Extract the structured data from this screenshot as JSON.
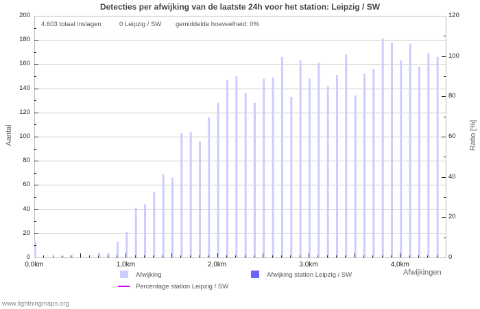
{
  "title": "Detecties per afwijking van de laatste 24h voor het station: Leipzig / SW",
  "info": {
    "total": "4.603 totaal inslagen",
    "station": "0 Leipzig / SW",
    "average": "gemiddelde hoeveelheid: 0%"
  },
  "axes": {
    "left_label": "Aantal",
    "right_label": "Ratio [%]",
    "x_label": "Afwijkingen"
  },
  "legend": {
    "items": [
      {
        "label": "Afwijking",
        "color": "#ccccff",
        "type": "box"
      },
      {
        "label": "Afwijking station Leipzig / SW",
        "color": "#6666ff",
        "type": "box"
      },
      {
        "label": "Percentage station Leipzig / SW",
        "color": "#cc00ee",
        "type": "line"
      }
    ]
  },
  "watermark": "www.lightningmaps.org",
  "colors": {
    "grid": "#cccccc",
    "axis": "#bbbbbb",
    "tick": "#222222",
    "bar": "#ccccff",
    "station_bar": "#6666ff",
    "percentage_line": "#cc00ee"
  },
  "chart_data": {
    "type": "bar",
    "title": "Detecties per afwijking van de laatste 24h voor het station: Leipzig / SW",
    "xlabel": "Afwijkingen",
    "ylabel": "Aantal",
    "y2label": "Ratio [%]",
    "x_unit": "m",
    "x": [
      0,
      100,
      200,
      300,
      400,
      500,
      600,
      700,
      800,
      900,
      1000,
      1100,
      1200,
      1300,
      1400,
      1500,
      1600,
      1700,
      1800,
      1900,
      2000,
      2100,
      2200,
      2300,
      2400,
      2500,
      2600,
      2700,
      2800,
      2900,
      3000,
      3100,
      3200,
      3300,
      3400,
      3500,
      3600,
      3700,
      3800,
      3900,
      4000,
      4100,
      4200,
      4300,
      4400
    ],
    "series": [
      {
        "name": "Afwijking",
        "axis": "left",
        "type": "bar",
        "values": [
          13,
          0,
          0,
          1,
          2,
          0,
          0,
          4,
          4,
          13,
          21,
          41,
          44,
          54,
          69,
          66,
          103,
          104,
          96,
          116,
          128,
          147,
          150,
          136,
          128,
          148,
          149,
          166,
          133,
          163,
          148,
          161,
          142,
          151,
          168,
          134,
          152,
          156,
          181,
          178,
          163,
          177,
          158,
          169,
          166
        ]
      },
      {
        "name": "Afwijking station Leipzig / SW",
        "axis": "left",
        "type": "bar",
        "values": [
          0,
          0,
          0,
          0,
          0,
          0,
          0,
          0,
          0,
          0,
          0,
          0,
          0,
          0,
          0,
          0,
          0,
          0,
          0,
          0,
          0,
          0,
          0,
          0,
          0,
          0,
          0,
          0,
          0,
          0,
          0,
          0,
          0,
          0,
          0,
          0,
          0,
          0,
          0,
          0,
          0,
          0,
          0,
          0,
          0
        ]
      },
      {
        "name": "Percentage station Leipzig / SW",
        "axis": "right",
        "type": "line",
        "values": [
          0,
          0,
          0,
          0,
          0,
          0,
          0,
          0,
          0,
          0,
          0,
          0,
          0,
          0,
          0,
          0,
          0,
          0,
          0,
          0,
          0,
          0,
          0,
          0,
          0,
          0,
          0,
          0,
          0,
          0,
          0,
          0,
          0,
          0,
          0,
          0,
          0,
          0,
          0,
          0,
          0,
          0,
          0,
          0,
          0
        ]
      }
    ],
    "xlim": [
      0,
      4500
    ],
    "x_ticks": [
      {
        "value": 0,
        "label": "0,0km"
      },
      {
        "value": 1000,
        "label": "1,0km"
      },
      {
        "value": 2000,
        "label": "2,0km"
      },
      {
        "value": 3000,
        "label": "3,0km"
      },
      {
        "value": 4000,
        "label": "4,0km"
      }
    ],
    "ylim": [
      0,
      200
    ],
    "y_ticks": [
      0,
      20,
      40,
      60,
      80,
      100,
      120,
      140,
      160,
      180,
      200
    ],
    "y2lim": [
      0,
      120
    ],
    "y2_ticks": [
      0,
      20,
      40,
      60,
      80,
      100,
      120
    ],
    "grid": true,
    "legend_position": "bottom"
  }
}
